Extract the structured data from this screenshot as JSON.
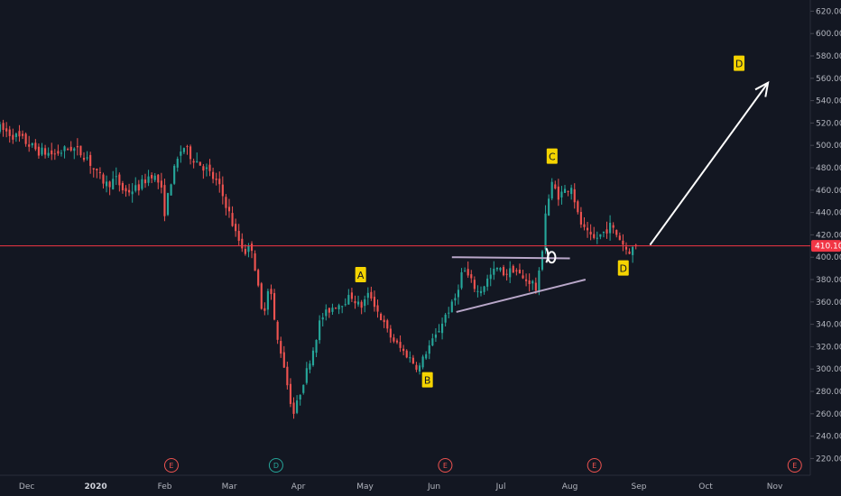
{
  "chart_data": {
    "type": "candlestick",
    "y_axis": {
      "ticks": [
        "620.00",
        "600.00",
        "580.00",
        "560.00",
        "540.00",
        "520.00",
        "500.00",
        "480.00",
        "460.00",
        "440.00",
        "420.00",
        "400.00",
        "380.00",
        "360.00",
        "340.00",
        "320.00",
        "300.00",
        "280.00",
        "260.00",
        "240.00",
        "220.00"
      ],
      "ylim": [
        205,
        630
      ],
      "position": "right",
      "last_price_label": "410.10",
      "last_price": 410.1
    },
    "x_axis": {
      "labels": [
        {
          "text": "Dec",
          "day": 0,
          "bold": false
        },
        {
          "text": "2020",
          "day": 31,
          "bold": true
        },
        {
          "text": "Feb",
          "day": 62,
          "bold": false
        },
        {
          "text": "Mar",
          "day": 91,
          "bold": false
        },
        {
          "text": "Apr",
          "day": 122,
          "bold": false
        },
        {
          "text": "May",
          "day": 152,
          "bold": false
        },
        {
          "text": "Jun",
          "day": 183,
          "bold": false
        },
        {
          "text": "Jul",
          "day": 213,
          "bold": false
        },
        {
          "text": "Aug",
          "day": 244,
          "bold": false
        },
        {
          "text": "Sep",
          "day": 275,
          "bold": false
        },
        {
          "text": "Oct",
          "day": 305,
          "bold": false
        },
        {
          "text": "Nov",
          "day": 336,
          "bold": false
        }
      ],
      "day_range": [
        -12,
        352
      ]
    },
    "price_path": [
      {
        "day": -12,
        "price": 515
      },
      {
        "day": -2,
        "price": 505
      },
      {
        "day": 5,
        "price": 495
      },
      {
        "day": 12,
        "price": 492
      },
      {
        "day": 20,
        "price": 498
      },
      {
        "day": 27,
        "price": 490
      },
      {
        "day": 31,
        "price": 475
      },
      {
        "day": 36,
        "price": 465
      },
      {
        "day": 40,
        "price": 470
      },
      {
        "day": 44,
        "price": 458
      },
      {
        "day": 50,
        "price": 462
      },
      {
        "day": 56,
        "price": 475
      },
      {
        "day": 60,
        "price": 465
      },
      {
        "day": 62,
        "price": 440
      },
      {
        "day": 65,
        "price": 470
      },
      {
        "day": 70,
        "price": 500
      },
      {
        "day": 74,
        "price": 490
      },
      {
        "day": 80,
        "price": 480
      },
      {
        "day": 86,
        "price": 465
      },
      {
        "day": 90,
        "price": 445
      },
      {
        "day": 94,
        "price": 420
      },
      {
        "day": 98,
        "price": 405
      },
      {
        "day": 101,
        "price": 410
      },
      {
        "day": 103,
        "price": 385
      },
      {
        "day": 106,
        "price": 345
      },
      {
        "day": 109,
        "price": 380
      },
      {
        "day": 112,
        "price": 330
      },
      {
        "day": 115,
        "price": 310
      },
      {
        "day": 118,
        "price": 275
      },
      {
        "day": 120,
        "price": 260
      },
      {
        "day": 123,
        "price": 280
      },
      {
        "day": 126,
        "price": 300
      },
      {
        "day": 129,
        "price": 320
      },
      {
        "day": 132,
        "price": 345
      },
      {
        "day": 137,
        "price": 355
      },
      {
        "day": 142,
        "price": 360
      },
      {
        "day": 146,
        "price": 365
      },
      {
        "day": 150,
        "price": 355
      },
      {
        "day": 154,
        "price": 368
      },
      {
        "day": 158,
        "price": 350
      },
      {
        "day": 163,
        "price": 330
      },
      {
        "day": 168,
        "price": 318
      },
      {
        "day": 172,
        "price": 310
      },
      {
        "day": 176,
        "price": 300
      },
      {
        "day": 180,
        "price": 318
      },
      {
        "day": 184,
        "price": 330
      },
      {
        "day": 188,
        "price": 348
      },
      {
        "day": 192,
        "price": 360
      },
      {
        "day": 196,
        "price": 390
      },
      {
        "day": 199,
        "price": 380
      },
      {
        "day": 203,
        "price": 368
      },
      {
        "day": 207,
        "price": 380
      },
      {
        "day": 211,
        "price": 390
      },
      {
        "day": 215,
        "price": 385
      },
      {
        "day": 219,
        "price": 390
      },
      {
        "day": 223,
        "price": 380
      },
      {
        "day": 227,
        "price": 378
      },
      {
        "day": 229,
        "price": 370
      },
      {
        "day": 231,
        "price": 395
      },
      {
        "day": 233,
        "price": 440
      },
      {
        "day": 236,
        "price": 465
      },
      {
        "day": 239,
        "price": 455
      },
      {
        "day": 242,
        "price": 460
      },
      {
        "day": 245,
        "price": 465
      },
      {
        "day": 247,
        "price": 440
      },
      {
        "day": 250,
        "price": 425
      },
      {
        "day": 254,
        "price": 415
      },
      {
        "day": 258,
        "price": 420
      },
      {
        "day": 262,
        "price": 428
      },
      {
        "day": 266,
        "price": 418
      },
      {
        "day": 270,
        "price": 405
      },
      {
        "day": 274,
        "price": 410
      }
    ],
    "event_markers": [
      {
        "text": "E",
        "day": 65,
        "color": "#ef5350"
      },
      {
        "text": "D",
        "day": 112,
        "color": "#26a69a"
      },
      {
        "text": "E",
        "day": 188,
        "color": "#ef5350"
      },
      {
        "text": "E",
        "day": 255,
        "color": "#ef5350"
      },
      {
        "text": "E",
        "day": 345,
        "color": "#ef5350"
      }
    ],
    "wave_labels": [
      {
        "text": "A",
        "day": 150,
        "price": 384
      },
      {
        "text": "B",
        "day": 180,
        "price": 290
      },
      {
        "text": "C",
        "day": 236,
        "price": 490
      },
      {
        "text": "D",
        "day": 268,
        "price": 390
      },
      {
        "text": "D",
        "day": 320,
        "price": 573
      }
    ],
    "drawings": {
      "resistance_line": {
        "from": [
          191,
          400
        ],
        "to": [
          244,
          399
        ]
      },
      "support_line": {
        "from": [
          193,
          351
        ],
        "to": [
          251,
          380
        ]
      },
      "projection_arrow": {
        "from": [
          280,
          411
        ],
        "to": [
          333,
          556
        ]
      }
    },
    "colors": {
      "background": "#131722",
      "up": "#26a69a",
      "down": "#ef5350",
      "price_line": "#f23645",
      "label_bg": "#f5d400",
      "trendline": "#b9a7c9",
      "arrow": "#ffffff"
    }
  }
}
